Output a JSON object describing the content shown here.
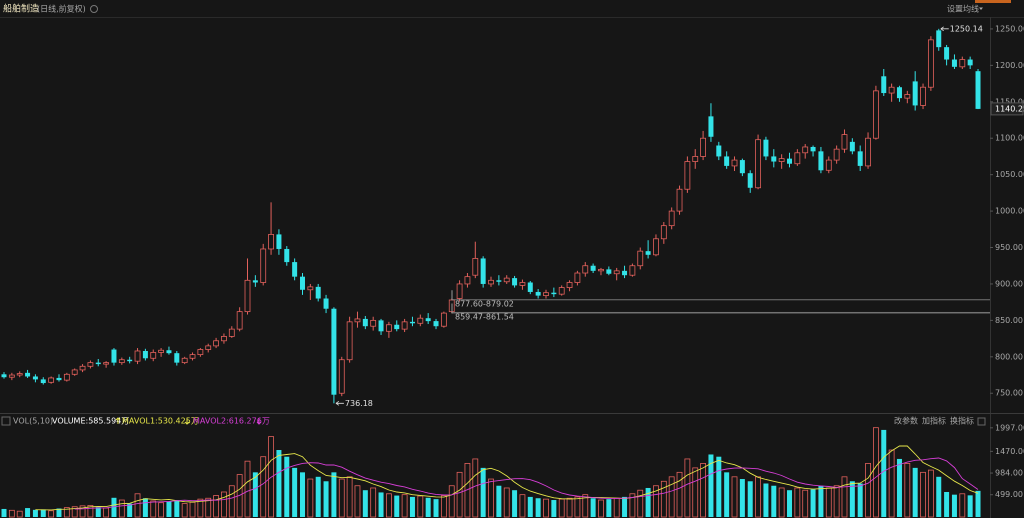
{
  "chart_data": [
    {
      "type": "candlestick",
      "title": "船舶制造",
      "subtitle": "(日线,前复权)",
      "buttons": [
        "设置均线"
      ],
      "up_color": "#e3615c",
      "down_color": "#33e3e8",
      "open": [
        776,
        772,
        775,
        778,
        773,
        769,
        765,
        771,
        768,
        776,
        782,
        787,
        792,
        790,
        810,
        792,
        796,
        794,
        808,
        798,
        806,
        809,
        805,
        792,
        798,
        803,
        810,
        815,
        822,
        828,
        838,
        862,
        905,
        902,
        948,
        968,
        948,
        930,
        910,
        892,
        896,
        880,
        866,
        750,
        796,
        848,
        852,
        842,
        850,
        835,
        844,
        838,
        848,
        846,
        853,
        849,
        842,
        862,
        880,
        900,
        912,
        935,
        900,
        905,
        903,
        908,
        898,
        902,
        889,
        884,
        888,
        886,
        895,
        902,
        915,
        925,
        918,
        920,
        914,
        918,
        912,
        925,
        945,
        940,
        962,
        980,
        1000,
        1030,
        1068,
        1075,
        1130,
        1090,
        1075,
        1062,
        1070,
        1052,
        1032,
        1098,
        1075,
        1068,
        1072,
        1065,
        1080,
        1088,
        1082,
        1056,
        1070,
        1085,
        1095,
        1082,
        1062,
        1100,
        1185,
        1162,
        1170,
        1155,
        1178,
        1145,
        1170,
        1248,
        1225,
        1208,
        1198,
        1208,
        1192
      ],
      "high": [
        779,
        778,
        780,
        782,
        776,
        772,
        773,
        776,
        778,
        784,
        790,
        795,
        797,
        794,
        812,
        799,
        800,
        812,
        811,
        810,
        812,
        814,
        808,
        800,
        806,
        812,
        818,
        826,
        832,
        842,
        868,
        935,
        912,
        955,
        1012,
        975,
        952,
        935,
        915,
        900,
        900,
        885,
        868,
        800,
        855,
        862,
        856,
        855,
        852,
        848,
        850,
        852,
        855,
        858,
        860,
        852,
        862,
        880,
        905,
        915,
        958,
        938,
        910,
        912,
        912,
        911,
        906,
        904,
        893,
        892,
        895,
        898,
        905,
        918,
        930,
        928,
        922,
        924,
        922,
        925,
        928,
        950,
        960,
        968,
        985,
        1005,
        1035,
        1075,
        1085,
        1110,
        1148,
        1095,
        1082,
        1075,
        1072,
        1056,
        1105,
        1102,
        1085,
        1078,
        1080,
        1085,
        1092,
        1090,
        1088,
        1075,
        1090,
        1112,
        1100,
        1090,
        1108,
        1172,
        1195,
        1175,
        1172,
        1165,
        1192,
        1175,
        1240,
        1250.14,
        1228,
        1215,
        1212,
        1212,
        1195
      ],
      "low": [
        770,
        768,
        772,
        771,
        765,
        762,
        763,
        766,
        766,
        774,
        779,
        784,
        787,
        785,
        788,
        789,
        791,
        790,
        795,
        794,
        800,
        803,
        788,
        790,
        795,
        800,
        806,
        812,
        818,
        826,
        835,
        858,
        896,
        898,
        940,
        940,
        925,
        905,
        885,
        878,
        876,
        860,
        736.18,
        746,
        792,
        840,
        838,
        836,
        830,
        826,
        835,
        834,
        842,
        842,
        845,
        838,
        840,
        860,
        876,
        895,
        908,
        895,
        896,
        898,
        900,
        895,
        892,
        886,
        880,
        880,
        882,
        884,
        890,
        898,
        910,
        915,
        912,
        912,
        905,
        908,
        910,
        920,
        935,
        938,
        955,
        975,
        995,
        1025,
        1058,
        1070,
        1095,
        1070,
        1058,
        1055,
        1048,
        1025,
        1030,
        1070,
        1060,
        1058,
        1060,
        1062,
        1072,
        1075,
        1052,
        1052,
        1065,
        1080,
        1078,
        1055,
        1058,
        1098,
        1158,
        1150,
        1150,
        1148,
        1138,
        1140,
        1165,
        1220,
        1200,
        1195,
        1195,
        1195,
        1140
      ],
      "close": [
        772,
        775,
        777,
        773,
        769,
        764,
        771,
        768,
        776,
        782,
        787,
        792,
        790,
        792,
        792,
        796,
        794,
        808,
        798,
        806,
        809,
        805,
        792,
        798,
        803,
        810,
        815,
        822,
        828,
        838,
        862,
        905,
        902,
        948,
        968,
        948,
        930,
        910,
        892,
        896,
        880,
        866,
        748,
        796,
        848,
        852,
        842,
        850,
        835,
        844,
        838,
        848,
        846,
        853,
        849,
        842,
        860,
        878,
        900,
        910,
        935,
        900,
        905,
        903,
        908,
        898,
        902,
        889,
        884,
        888,
        886,
        895,
        902,
        915,
        925,
        918,
        920,
        914,
        918,
        912,
        925,
        945,
        940,
        962,
        980,
        1000,
        1030,
        1068,
        1075,
        1100,
        1102,
        1075,
        1062,
        1070,
        1052,
        1032,
        1098,
        1075,
        1068,
        1072,
        1065,
        1080,
        1088,
        1082,
        1056,
        1070,
        1085,
        1105,
        1082,
        1062,
        1100,
        1165,
        1162,
        1170,
        1155,
        1160,
        1145,
        1170,
        1235,
        1225,
        1208,
        1198,
        1208,
        1200,
        1140.25
      ],
      "ylim": [
        727,
        1265
      ],
      "yticks": [
        {
          "value": 750,
          "label": "750.00"
        },
        {
          "value": 800,
          "label": "800.00"
        },
        {
          "value": 850,
          "label": "850.00"
        },
        {
          "value": 900,
          "label": "900.00"
        },
        {
          "value": 950,
          "label": "950.00"
        },
        {
          "value": 1000,
          "label": "1000.00"
        },
        {
          "value": 1050,
          "label": "1050.00"
        },
        {
          "value": 1100,
          "label": "1100.00"
        },
        {
          "value": 1150,
          "label": "1150.00"
        },
        {
          "value": 1200,
          "label": "1200.00"
        },
        {
          "value": 1250,
          "label": "1250.00"
        }
      ],
      "price_tag": {
        "value": 1140.25,
        "label": "1140.25"
      },
      "annotations": [
        {
          "value": 1250.14,
          "label": "1250.14"
        },
        {
          "value": 736.18,
          "label": "736.18"
        }
      ],
      "levels": [
        {
          "values": [
            877.6,
            879.02
          ],
          "label": "877.60-879.02"
        },
        {
          "values": [
            859.47,
            861.54
          ],
          "label": "859.47-861.54"
        }
      ]
    },
    {
      "type": "volume",
      "title": "VOL(5,10)",
      "buttons": [
        "改参数",
        "加指标",
        "换指标"
      ],
      "name": "VOLUME:585.594万",
      "color": "#ffffff",
      "values": [
        180,
        150,
        130,
        200,
        160,
        170,
        140,
        190,
        210,
        230,
        250,
        260,
        220,
        200,
        430,
        380,
        300,
        520,
        420,
        360,
        320,
        350,
        380,
        300,
        330,
        400,
        420,
        480,
        560,
        700,
        950,
        1250,
        1000,
        1350,
        1800,
        1500,
        1350,
        1100,
        1000,
        850,
        900,
        800,
        1000,
        850,
        900,
        700,
        600,
        650,
        550,
        520,
        480,
        500,
        450,
        470,
        430,
        400,
        480,
        700,
        1000,
        1200,
        1300,
        1100,
        850,
        700,
        650,
        600,
        500,
        450,
        420,
        400,
        380,
        400,
        420,
        450,
        500,
        420,
        380,
        400,
        420,
        450,
        520,
        600,
        650,
        700,
        800,
        900,
        1000,
        1300,
        1100,
        1200,
        1400,
        1350,
        1000,
        900,
        850,
        800,
        900,
        750,
        700,
        650,
        600,
        650,
        600,
        620,
        700,
        650,
        700,
        900,
        800,
        750,
        1200,
        2000,
        1950,
        1500,
        1300,
        1200,
        1100,
        1000,
        1050,
        900,
        560,
        500,
        520,
        485,
        585.594
      ],
      "series": [
        {
          "name": "MAVOL1:530.425万",
          "color": "#e6e64a",
          "values": [
            null,
            null,
            null,
            null,
            164,
            162,
            160,
            172,
            174,
            188,
            204,
            228,
            234,
            232,
            272,
            298,
            306,
            366,
            410,
            396,
            384,
            394,
            366,
            342,
            336,
            352,
            366,
            386,
            438,
            512,
            622,
            788,
            892,
            1050,
            1270,
            1380,
            1400,
            1420,
            1350,
            1160,
            1040,
            930,
            910,
            880,
            890,
            850,
            810,
            740,
            680,
            604,
            560,
            540,
            500,
            484,
            466,
            450,
            446,
            496,
            602,
            756,
            936,
            1060,
            1090,
            1030,
            920,
            780,
            660,
            580,
            524,
            474,
            430,
            410,
            404,
            410,
            430,
            438,
            434,
            430,
            424,
            414,
            434,
            478,
            528,
            584,
            654,
            730,
            810,
            940,
            1020,
            1100,
            1200,
            1270,
            1210,
            1170,
            1100,
            980,
            890,
            840,
            800,
            760,
            720,
            670,
            640,
            624,
            634,
            644,
            654,
            714,
            750,
            760,
            870,
            1130,
            1340,
            1480,
            1590,
            1590,
            1410,
            1220,
            1130,
            1050,
            922,
            802,
            706,
            593,
            530.425
          ]
        },
        {
          "name": "MAVOL2:616.276万",
          "color": "#d63ed6",
          "values": [
            null,
            null,
            null,
            null,
            null,
            null,
            null,
            null,
            null,
            176,
            183,
            194,
            203,
            203,
            230,
            251,
            267,
            300,
            321,
            334,
            341,
            350,
            366,
            376,
            366,
            368,
            380,
            376,
            390,
            424,
            487,
            577,
            639,
            744,
            891,
            1001,
            1094,
            1156,
            1200,
            1215,
            1210,
            1165,
            1165,
            1115,
            1025,
            945,
            870,
            825,
            780,
            747,
            705,
            675,
            620,
            582,
            535,
            505,
            493,
            498,
            543,
            611,
            693,
            753,
            793,
            816,
            838,
            858,
            860,
            835,
            777,
            697,
            605,
            535,
            492,
            467,
            452,
            434,
            422,
            417,
            417,
            422,
            436,
            456,
            479,
            504,
            534,
            582,
            644,
            734,
            802,
            877,
            965,
            1040,
            1075,
            1095,
            1100,
            1090,
            1080,
            1025,
            985,
            930,
            850,
            780,
            740,
            712,
            697,
            682,
            662,
            677,
            687,
            697,
            757,
            892,
            1027,
            1115,
            1175,
            1230,
            1270,
            1280,
            1305,
            1320,
            1256,
            1106,
            860,
            740,
            616.276
          ]
        }
      ],
      "ylim": [
        0,
        2060
      ],
      "yticks": [
        {
          "value": 499,
          "label": "499.00"
        },
        {
          "value": 984,
          "label": "984.00"
        },
        {
          "value": 1470,
          "label": "1470.00"
        },
        {
          "value": 1997,
          "label": "1997.00"
        }
      ]
    }
  ]
}
